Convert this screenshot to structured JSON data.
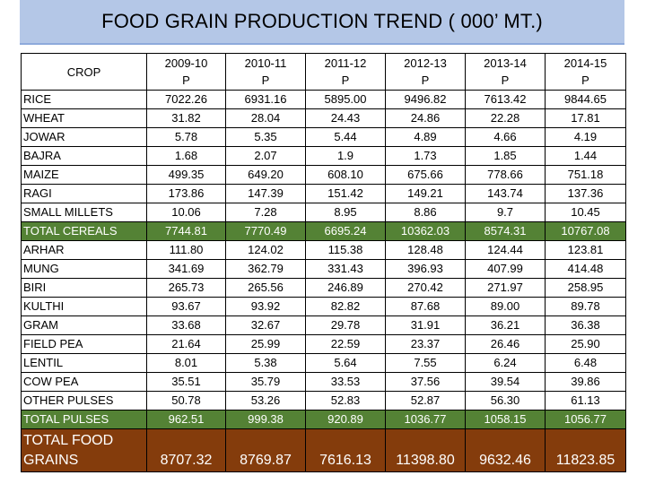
{
  "title": "FOOD GRAIN PRODUCTION TREND ( 000’ MT.)",
  "header": {
    "crop": "CROP",
    "years": [
      "2009-10",
      "2010-11",
      "2011-12",
      "2012-13",
      "2013-14",
      "2014-15"
    ],
    "status": [
      "P",
      "P",
      "P",
      "P",
      "P",
      "P"
    ]
  },
  "rows": [
    {
      "crop": "RICE",
      "values": [
        "7022.26",
        "6931.16",
        "5895.00",
        "9496.82",
        "7613.42",
        "9844.65"
      ]
    },
    {
      "crop": "WHEAT",
      "values": [
        "31.82",
        "28.04",
        "24.43",
        "24.86",
        "22.28",
        "17.81"
      ]
    },
    {
      "crop": "JOWAR",
      "values": [
        "5.78",
        "5.35",
        "5.44",
        "4.89",
        "4.66",
        "4.19"
      ]
    },
    {
      "crop": "BAJRA",
      "values": [
        "1.68",
        "2.07",
        "1.9",
        "1.73",
        "1.85",
        "1.44"
      ]
    },
    {
      "crop": "MAIZE",
      "values": [
        "499.35",
        "649.20",
        "608.10",
        "675.66",
        "778.66",
        "751.18"
      ]
    },
    {
      "crop": "RAGI",
      "values": [
        "173.86",
        "147.39",
        "151.42",
        "149.21",
        "143.74",
        "137.36"
      ]
    },
    {
      "crop": "SMALL MILLETS",
      "values": [
        "10.06",
        "7.28",
        "8.95",
        "8.86",
        "9.7",
        "10.45"
      ]
    },
    {
      "crop": "TOTAL CEREALS",
      "values": [
        "7744.81",
        "7770.49",
        "6695.24",
        "10362.03",
        "8574.31",
        "10767.08"
      ]
    },
    {
      "crop": "ARHAR",
      "values": [
        "111.80",
        "124.02",
        "115.38",
        "128.48",
        "124.44",
        "123.81"
      ]
    },
    {
      "crop": "MUNG",
      "values": [
        "341.69",
        "362.79",
        "331.43",
        "396.93",
        "407.99",
        "414.48"
      ]
    },
    {
      "crop": "BIRI",
      "values": [
        "265.73",
        "265.56",
        "246.89",
        "270.42",
        "271.97",
        "258.95"
      ]
    },
    {
      "crop": "KULTHI",
      "values": [
        "93.67",
        "93.92",
        "82.82",
        "87.68",
        "89.00",
        "89.78"
      ]
    },
    {
      "crop": "GRAM",
      "values": [
        "33.68",
        "32.67",
        "29.78",
        "31.91",
        "36.21",
        "36.38"
      ]
    },
    {
      "crop": "FIELD PEA",
      "values": [
        "21.64",
        "25.99",
        "22.59",
        "23.37",
        "26.46",
        "25.90"
      ]
    },
    {
      "crop": "LENTIL",
      "values": [
        "8.01",
        "5.38",
        "5.64",
        "7.55",
        "6.24",
        "6.48"
      ]
    },
    {
      "crop": "COW PEA",
      "values": [
        "35.51",
        "35.79",
        "33.53",
        "37.56",
        "39.54",
        "39.86"
      ]
    },
    {
      "crop": "OTHER PULSES",
      "values": [
        "50.78",
        "53.26",
        "52.83",
        "52.87",
        "56.30",
        "61.13"
      ]
    },
    {
      "crop": "TOTAL PULSES",
      "values": [
        "962.51",
        "999.38",
        "920.89",
        "1036.77",
        "1058.15",
        "1056.77"
      ]
    },
    {
      "crop": "TOTAL FOOD GRAINS",
      "values": [
        "8707.32",
        "8769.87",
        "7616.13",
        "11398.80",
        "9632.46",
        "11823.85"
      ]
    }
  ]
}
